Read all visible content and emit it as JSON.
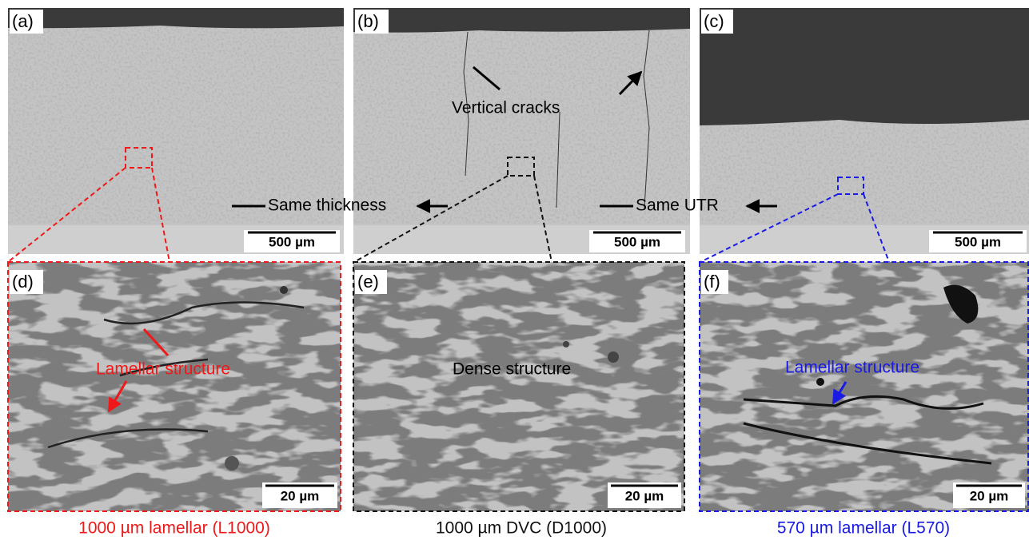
{
  "panels": [
    {
      "label": "(a)",
      "scale_bar": "500 µm"
    },
    {
      "label": "(b)",
      "scale_bar": "500 µm",
      "annotation": "Vertical cracks"
    },
    {
      "label": "(c)",
      "scale_bar": "500 µm"
    },
    {
      "label": "(d)",
      "scale_bar": "20 µm",
      "annotation": "Lamellar structure"
    },
    {
      "label": "(e)",
      "scale_bar": "20 µm",
      "annotation": "Dense structure"
    },
    {
      "label": "(f)",
      "scale_bar": "20 µm",
      "annotation": "Lamellar structure"
    }
  ],
  "comparisons": [
    "Same thickness",
    "Same UTR"
  ],
  "captions": [
    "1000 µm lamellar (L1000)",
    "1000 µm DVC (D1000)",
    "570 µm lamellar (L570)"
  ]
}
